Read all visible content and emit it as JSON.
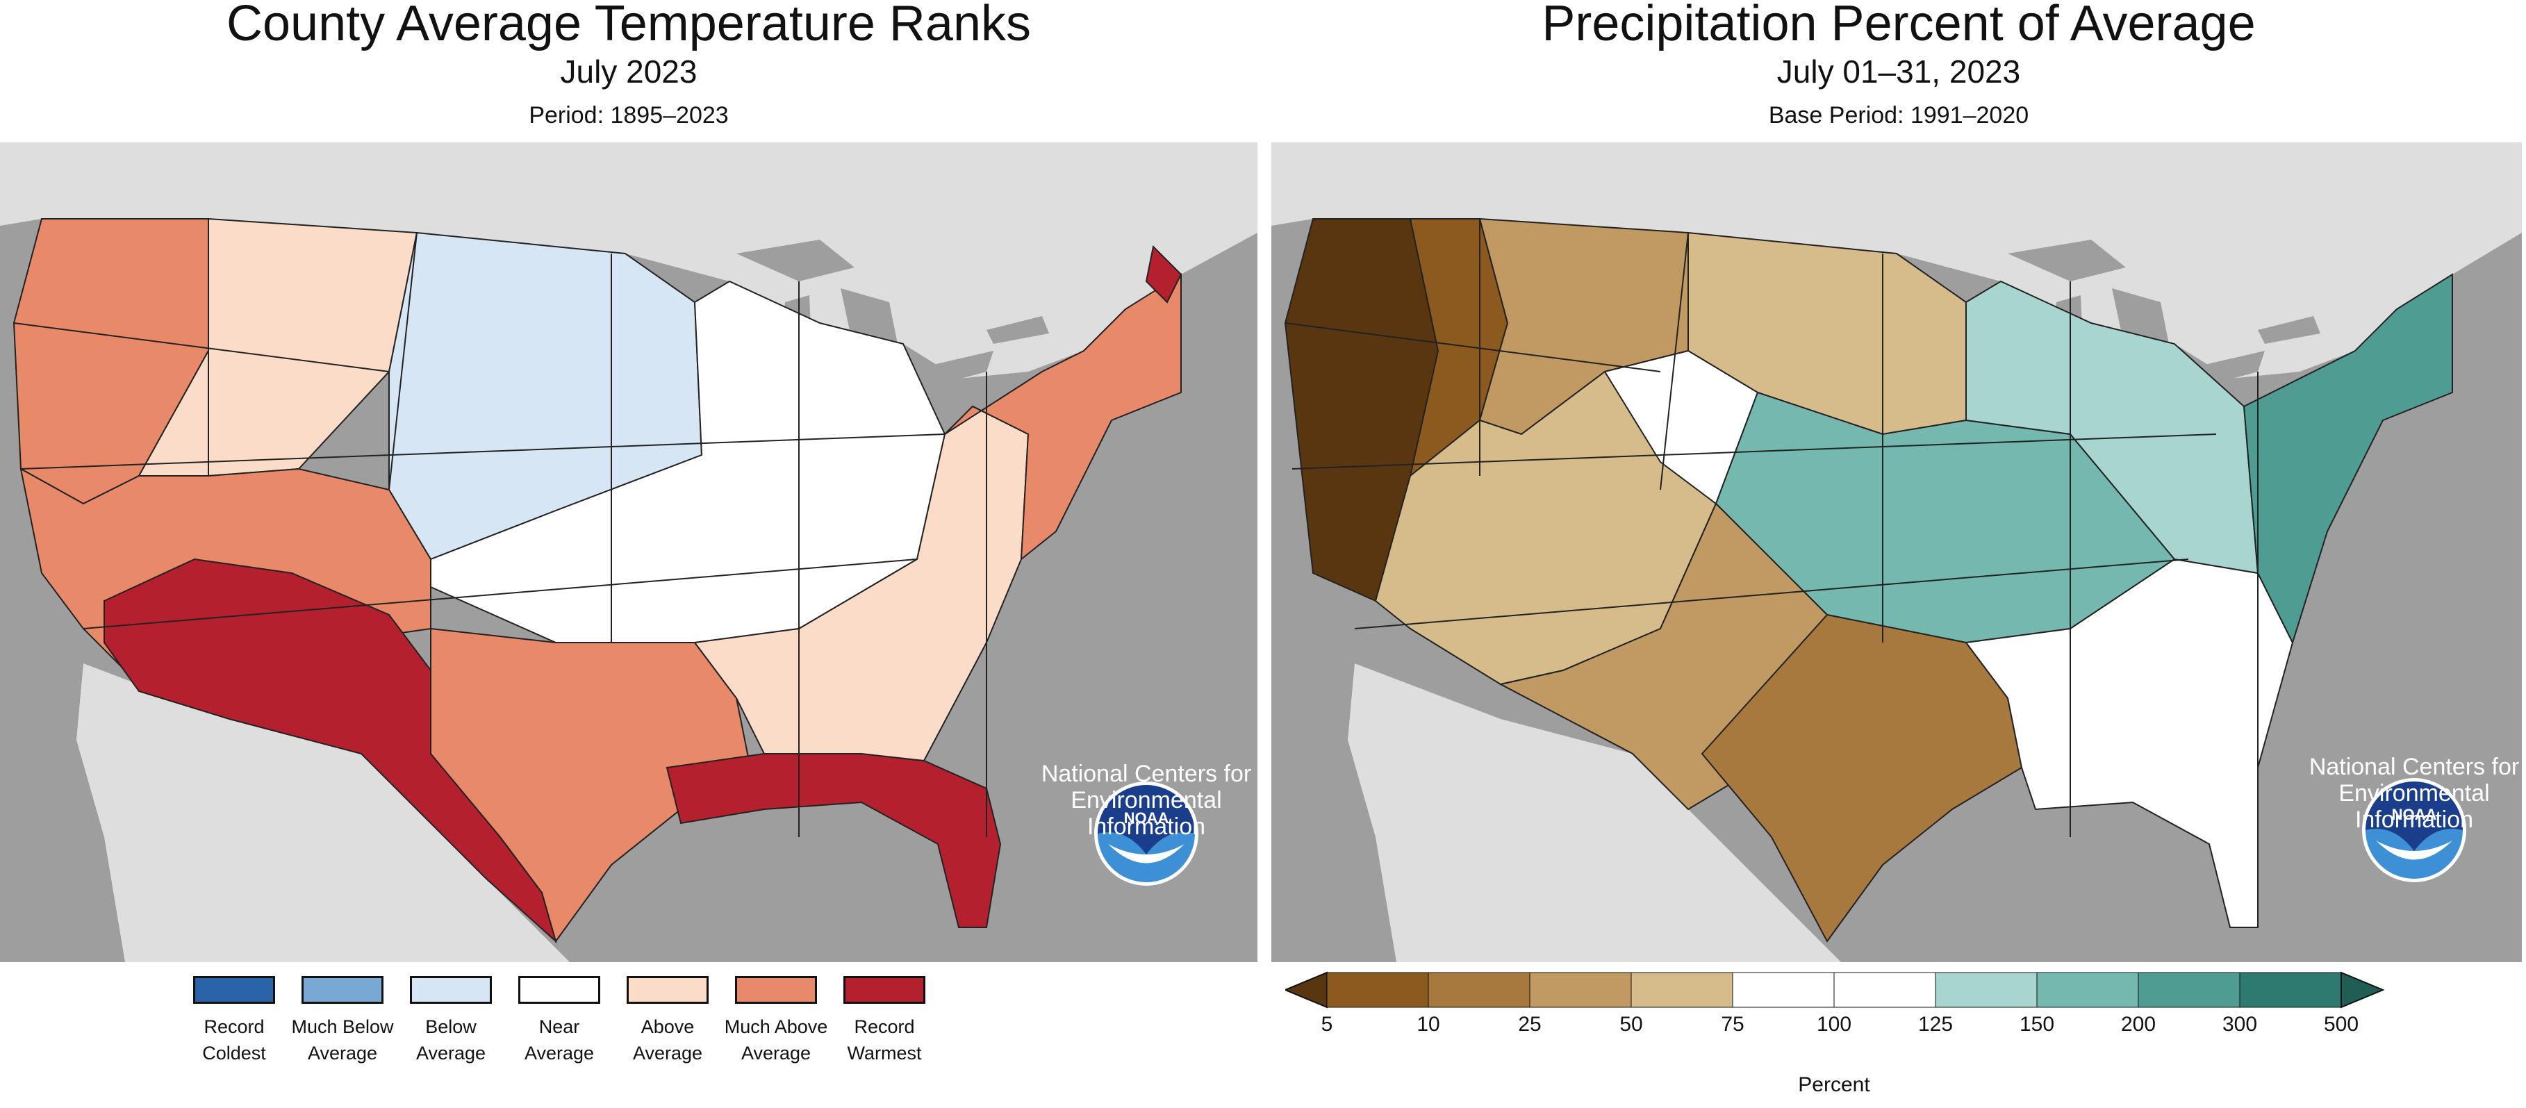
{
  "left": {
    "title": "County Average Temperature Ranks",
    "subtitle": "July 2023",
    "period": "Period: 1895–2023",
    "agency_label": "National Centers for Environmental Information",
    "logo_text": "NOAA",
    "legend": [
      {
        "label": "Record Coldest",
        "color": "#2b63a8"
      },
      {
        "label": "Much Below Average",
        "color": "#79a8d4"
      },
      {
        "label": "Below Average",
        "color": "#d6e6f4"
      },
      {
        "label": "Near Average",
        "color": "#ffffff"
      },
      {
        "label": "Above Average",
        "color": "#fbdcc8"
      },
      {
        "label": "Much Above Average",
        "color": "#e8896a"
      },
      {
        "label": "Record Warmest",
        "color": "#b5202e"
      }
    ]
  },
  "right": {
    "title": "Precipitation Percent of Average",
    "subtitle": "July 01–31, 2023",
    "period": "Base Period: 1991–2020",
    "agency_label": "National Centers for Environmental Information",
    "logo_text": "NOAA",
    "colorbar": {
      "ticks": [
        "5",
        "10",
        "25",
        "50",
        "75",
        "100",
        "125",
        "150",
        "200",
        "300",
        "500"
      ],
      "colors": [
        "#8c5a1e",
        "#a8793e",
        "#c09a62",
        "#d6bb8b",
        "#ffffff",
        "#ffffff",
        "#a8d5cf",
        "#75b8b0",
        "#4f9c92",
        "#2f7a70"
      ],
      "end_colors": [
        "#5a3610",
        "#1f5d55"
      ],
      "title": "Percent"
    }
  },
  "colors": {
    "ocean": "#9e9e9e",
    "land_outside": "#dedede",
    "lakes": "#9e9e9e",
    "noaa_blue": "#1a3e8c",
    "noaa_light": "#3d8fd6"
  }
}
